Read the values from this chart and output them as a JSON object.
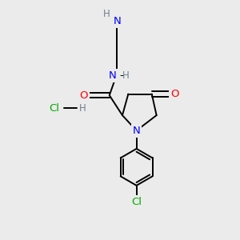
{
  "bg_color": "#ebebeb",
  "atom_colors": {
    "C": "#000000",
    "N": "#0000ff",
    "O": "#ff0000",
    "Cl": "#00aa00",
    "H": "#708090"
  },
  "bond_color": "#000000"
}
